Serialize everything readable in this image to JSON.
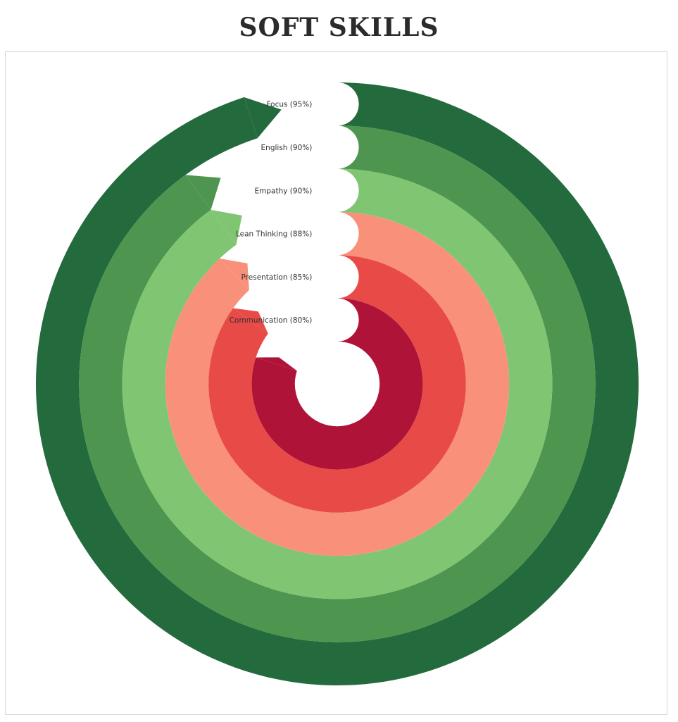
{
  "chart_data": {
    "type": "radial_bar",
    "title": "SOFT SKILLS",
    "categories": [
      "Focus",
      "English",
      "Empathy",
      "Lean Thinking",
      "Presentation",
      "Communication"
    ],
    "values": [
      95,
      90,
      90,
      88,
      85,
      80
    ],
    "labels": [
      "Focus (95%)",
      "English (90%)",
      "Empathy (90%)",
      "Lean Thinking (88%)",
      "Presentation (85%)",
      "Communication (80%)"
    ],
    "colors": [
      "#236b3c",
      "#4e9650",
      "#80c572",
      "#f99079",
      "#e84a47",
      "#b01338"
    ],
    "max": 100
  }
}
